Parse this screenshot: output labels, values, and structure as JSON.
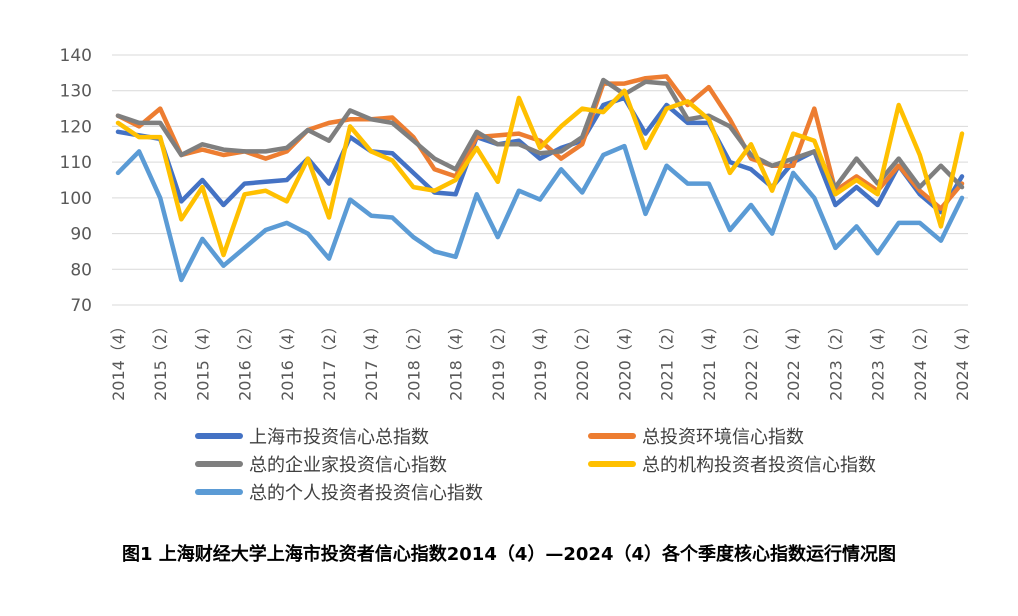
{
  "chart_data": {
    "type": "line",
    "ylim": [
      70,
      140
    ],
    "yticks": [
      70,
      80,
      90,
      100,
      110,
      120,
      130,
      140
    ],
    "grid": true,
    "legend_position": "bottom",
    "x": [
      "2014 (4)",
      "2015 (1)",
      "2015 (2)",
      "2015 (3)",
      "2015 (4)",
      "2016 (1)",
      "2016 (2)",
      "2016 (3)",
      "2016 (4)",
      "2017 (1)",
      "2017 (2)",
      "2017 (3)",
      "2017 (4)",
      "2018 (1)",
      "2018 (2)",
      "2018 (3)",
      "2018 (4)",
      "2019 (1)",
      "2019 (2)",
      "2019 (3)",
      "2019 (4)",
      "2020 (1)",
      "2020 (2)",
      "2020 (3)",
      "2020 (4)",
      "2021 (1)",
      "2021 (2)",
      "2021 (3)",
      "2021 (4)",
      "2022 (1)",
      "2022 (2)",
      "2022 (3)",
      "2022 (4)",
      "2023 (1)",
      "2023 (2)",
      "2023 (3)",
      "2023 (4)",
      "2024 (1)",
      "2024 (2)",
      "2024 (3)",
      "2024 (4)"
    ],
    "tick_labels": [
      "2014（4）",
      "2015（2）",
      "2015（4）",
      "2016（2）",
      "2016（4）",
      "2017（2）",
      "2017（4）",
      "2018（2）",
      "2018（4）",
      "2019（2）",
      "2019（4）",
      "2020（2）",
      "2020（4）",
      "2021（2）",
      "2021（4）",
      "2022（2）",
      "2022（4）",
      "2023（2）",
      "2023（4）",
      "2024（2）",
      "2024（4）"
    ],
    "series": [
      {
        "name": "上海市投资信心总指数",
        "color": "#4472C4",
        "values": [
          118.5,
          117.5,
          116.5,
          99,
          105,
          98,
          104,
          104.5,
          105,
          111,
          104,
          117,
          113,
          112.5,
          107,
          101.5,
          101,
          117,
          115,
          116,
          111,
          114,
          116,
          126,
          128,
          118,
          126,
          121,
          121,
          110,
          108,
          103,
          110,
          113,
          98,
          103,
          98,
          109,
          101,
          96,
          106
        ]
      },
      {
        "name": "总投资环境信心指数",
        "color": "#ED7D31",
        "values": [
          123,
          120,
          125,
          112,
          113.5,
          112,
          113,
          111,
          113,
          119,
          121,
          122,
          122,
          122.5,
          117,
          108,
          106,
          117,
          117.5,
          118,
          116,
          111,
          115,
          132,
          132,
          133.5,
          134,
          126,
          131,
          122,
          111,
          109,
          109,
          125,
          102,
          106,
          102,
          109,
          102,
          97,
          104
        ]
      },
      {
        "name": "总的企业家投资信心指数",
        "color": "#7F7F7F",
        "values": [
          123,
          121,
          121,
          112,
          115,
          113.5,
          113,
          113,
          114,
          119,
          116,
          124.5,
          122,
          121,
          116,
          111,
          108,
          118.5,
          115,
          115,
          112.5,
          113,
          117,
          133,
          129,
          132.5,
          132,
          122,
          123,
          120,
          112,
          109,
          111,
          113,
          103,
          111,
          104,
          111,
          103,
          109,
          103
        ]
      },
      {
        "name": "总的机构投资者投资信心指数",
        "color": "#FFC000",
        "values": [
          121,
          117,
          117,
          94,
          103,
          84,
          101,
          102,
          99,
          111,
          94.5,
          120,
          113,
          110.5,
          103,
          102,
          105,
          114,
          104.5,
          128,
          114,
          120,
          125,
          124,
          130,
          114,
          125,
          127,
          122,
          107,
          115,
          102,
          118,
          116,
          101,
          105,
          101,
          126,
          112,
          92,
          118
        ]
      },
      {
        "name": "总的个人投资者投资信心指数",
        "color": "#5B9BD5",
        "values": [
          107,
          113,
          100,
          77,
          88.5,
          81,
          86,
          91,
          93,
          90,
          83,
          99.5,
          95,
          94.5,
          89,
          85,
          83.5,
          101,
          89,
          102,
          99.5,
          108,
          101.5,
          112,
          114.5,
          95.5,
          109,
          104,
          104,
          91,
          98,
          90,
          107,
          100,
          86,
          92,
          84.5,
          93,
          93,
          88,
          100
        ]
      }
    ]
  },
  "caption": "图1 上海财经大学上海市投资者信心指数2014（4）—2024（4）各个季度核心指数运行情况图"
}
